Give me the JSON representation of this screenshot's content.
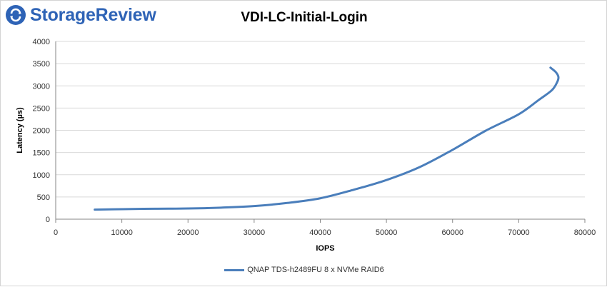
{
  "brand": {
    "logo_text": "StorageReview",
    "logo_color": "#2e63b6"
  },
  "chart_data": {
    "type": "line",
    "title": "VDI-LC-Initial-Login",
    "xlabel": "IOPS",
    "ylabel": "Latency (µs)",
    "xlim": [
      0,
      80000
    ],
    "ylim": [
      0,
      4000
    ],
    "x_ticks": [
      "0",
      "10000",
      "20000",
      "30000",
      "40000",
      "50000",
      "60000",
      "70000",
      "80000"
    ],
    "y_ticks": [
      "0",
      "500",
      "1000",
      "1500",
      "2000",
      "2500",
      "3000",
      "3500",
      "4000"
    ],
    "grid": "horizontal",
    "legend_position": "bottom",
    "series": [
      {
        "name": "QNAP TDS-h2489FU 8 x NVMe RAID6",
        "color": "#4a7ebb",
        "points": [
          [
            5900,
            215
          ],
          [
            10000,
            225
          ],
          [
            15000,
            235
          ],
          [
            20000,
            240
          ],
          [
            25000,
            260
          ],
          [
            30000,
            295
          ],
          [
            35000,
            365
          ],
          [
            40000,
            470
          ],
          [
            45000,
            660
          ],
          [
            50000,
            880
          ],
          [
            55000,
            1170
          ],
          [
            60000,
            1560
          ],
          [
            65000,
            1990
          ],
          [
            70000,
            2360
          ],
          [
            73000,
            2680
          ],
          [
            75000,
            2900
          ],
          [
            75800,
            3080
          ],
          [
            76000,
            3200
          ],
          [
            75600,
            3310
          ],
          [
            74800,
            3410
          ]
        ]
      }
    ]
  }
}
